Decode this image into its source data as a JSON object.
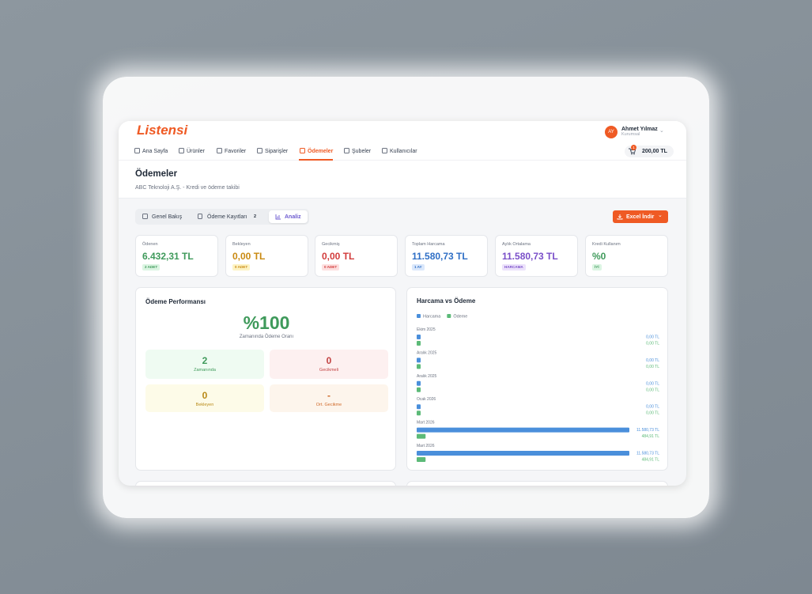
{
  "header": {
    "logo": "Listensi",
    "user_initials": "AY",
    "user_name": "Ahmet Yılmaz",
    "user_role": "Kurumsal",
    "cart_badge": "1",
    "cart_total": "200,00 TL"
  },
  "nav": [
    "Ana Sayfa",
    "Ürünler",
    "Favoriler",
    "Siparişler",
    "Ödemeler",
    "Şubeler",
    "Kullanıcılar"
  ],
  "page": {
    "title": "Ödemeler",
    "subtitle": "ABC Teknoloji A.Ş. - Kredi ve ödeme takibi"
  },
  "tabs": [
    {
      "label": "Genel Bakış"
    },
    {
      "label": "Ödeme Kayıtları",
      "badge": "2"
    },
    {
      "label": "Analiz"
    }
  ],
  "export_button": "Excel İndir",
  "stats": [
    {
      "label": "Ödenen",
      "value": "6.432,31 TL",
      "badge": "2 ADET"
    },
    {
      "label": "Bekleyen",
      "value": "0,00 TL",
      "badge": "0 ADET"
    },
    {
      "label": "Gecikmiş",
      "value": "0,00 TL",
      "badge": "0 ADET"
    },
    {
      "label": "Toplam Harcama",
      "value": "11.580,73 TL",
      "badge": "1 AY"
    },
    {
      "label": "Aylık Ortalama",
      "value": "11.580,73 TL",
      "badge": "HARCAMA"
    },
    {
      "label": "Kredi Kullanım",
      "value": "%0",
      "badge": "İYİ"
    }
  ],
  "performance": {
    "title": "Ödeme Performansı",
    "rate": "%100",
    "rate_label": "Zamanında Ödeme Oranı",
    "boxes": [
      {
        "value": "2",
        "label": "Zamanında"
      },
      {
        "value": "0",
        "label": "Gecikmeli"
      },
      {
        "value": "0",
        "label": "Bekleyen"
      },
      {
        "value": "-",
        "label": "Ort. Gecikme"
      }
    ]
  },
  "spending_chart": {
    "type": "bar",
    "title": "Harcama vs Ödeme",
    "categories": [
      "Ekim 2025",
      "Aralık 2025",
      "Aralık 2025",
      "Ocak 2026",
      "Mart 2026",
      "Mart 2026"
    ],
    "series": [
      {
        "name": "Harcama",
        "color": "#4a8fdb",
        "values": [
          0,
          0,
          0,
          0,
          11580.73,
          11580.73
        ],
        "value_labels": [
          "0,00 TL",
          "0,00 TL",
          "0,00 TL",
          "0,00 TL",
          "11.580,73 TL",
          "11.580,73 TL"
        ]
      },
      {
        "name": "Ödeme",
        "color": "#5cba78",
        "values": [
          0,
          0,
          0,
          0,
          484.91,
          484.91
        ],
        "value_labels": [
          "0,00 TL",
          "0,00 TL",
          "0,00 TL",
          "0,00 TL",
          "484,91 TL",
          "484,91 TL"
        ]
      }
    ]
  }
}
